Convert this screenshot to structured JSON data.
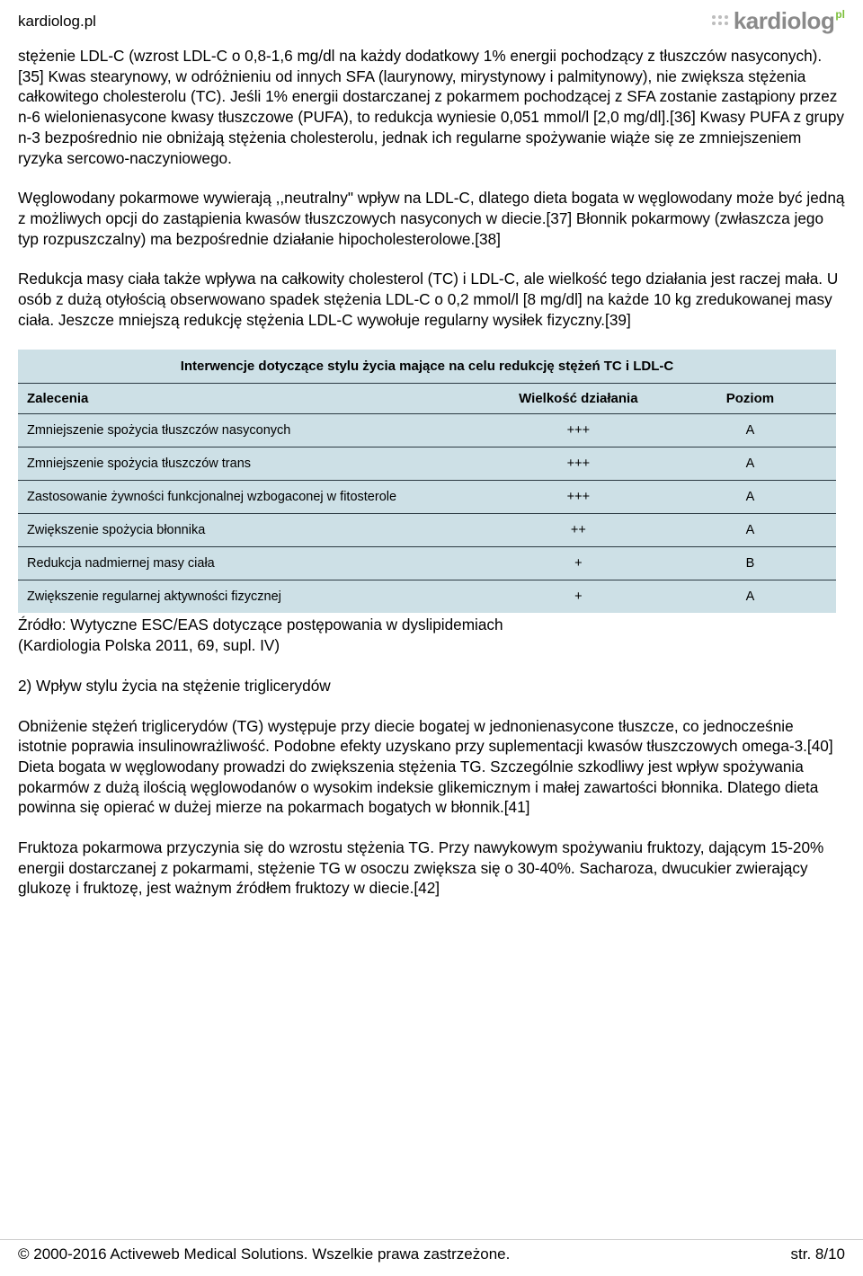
{
  "header": {
    "url": "kardiolog.pl",
    "logo_text": "kardiolog",
    "logo_suffix": "pl"
  },
  "paragraphs": {
    "p1": "stężenie LDL-C (wzrost LDL-C o 0,8-1,6 mg/dl na każdy dodatkowy 1% energii pochodzący z tłuszczów nasyconych).[35] Kwas stearynowy, w odróżnieniu od innych SFA (laurynowy, mirystynowy i palmitynowy), nie zwiększa stężenia całkowitego cholesterolu (TC). Jeśli 1% energii dostarczanej z pokarmem pochodzącej z SFA zostanie zastąpiony przez n-6 wielonienasycone kwasy tłuszczowe (PUFA), to redukcja wyniesie 0,051 mmol/l [2,0 mg/dl].[36] Kwasy PUFA z grupy n-3 bezpośrednio nie obniżają stężenia cholesterolu, jednak ich regularne spożywanie wiąże się ze zmniejszeniem ryzyka sercowo-naczyniowego.",
    "p2": "Węglowodany pokarmowe wywierają ,,neutralny\" wpływ na LDL-C, dlatego dieta bogata w węglowodany może być jedną z możliwych opcji do zastąpienia kwasów tłuszczowych nasyconych w diecie.[37] Błonnik pokarmowy (zwłaszcza jego typ rozpuszczalny) ma bezpośrednie działanie hipocholesterolowe.[38]",
    "p3": "Redukcja masy ciała także wpływa na całkowity cholesterol (TC) i LDL-C, ale wielkość tego działania jest raczej mała. U osób z dużą otyłością obserwowano spadek stężenia LDL-C o 0,2 mmol/l [8 mg/dl] na każde 10 kg zredukowanej masy ciała. Jeszcze mniejszą redukcję stężenia LDL-C wywołuje regularny wysiłek fizyczny.[39]",
    "source1": "Źródło: Wytyczne ESC/EAS dotyczące postępowania w dyslipidemiach",
    "source2": "(Kardiologia Polska 2011, 69, supl. IV)",
    "p4": "2) Wpływ stylu życia na stężenie triglicerydów",
    "p5": "Obniżenie stężeń triglicerydów (TG) występuje przy diecie bogatej w jednonienasycone tłuszcze, co jednocześnie istotnie poprawia insulinowrażliwość. Podobne efekty uzyskano przy suplementacji kwasów tłuszczowych omega-3.[40] Dieta bogata w węglowodany prowadzi do zwiększenia stężenia TG. Szczególnie szkodliwy jest wpływ spożywania pokarmów z dużą ilością węglowodanów o wysokim indeksie glikemicznym i małej zawartości błonnika. Dlatego dieta powinna się opierać w dużej mierze na pokarmach bogatych w błonnik.[41]",
    "p6": "Fruktoza pokarmowa przyczynia się do wzrostu stężenia TG. Przy nawykowym spożywaniu fruktozy, dającym 15-20% energii dostarczanej z pokarmami, stężenie TG w osoczu zwiększa się o 30-40%. Sacharoza, dwucukier zwierający glukozę i fruktozę, jest ważnym źródłem fruktozy w diecie.[42]"
  },
  "table": {
    "title": "Interwencje dotyczące stylu życia mające na celu redukcję stężeń TC i LDL-C",
    "columns": [
      "Zalecenia",
      "Wielkość działania",
      "Poziom"
    ],
    "rows": [
      [
        "Zmniejszenie spożycia tłuszczów nasyconych",
        "+++",
        "A"
      ],
      [
        "Zmniejszenie spożycia tłuszczów trans",
        "+++",
        "A"
      ],
      [
        "Zastosowanie żywności funkcjonalnej wzbogaconej w fitosterole",
        "+++",
        "A"
      ],
      [
        "Zwiększenie spożycia błonnika",
        "++",
        "A"
      ],
      [
        "Redukcja nadmiernej masy ciała",
        "+",
        "B"
      ],
      [
        "Zwiększenie regularnej aktywności fizycznej",
        "+",
        "A"
      ]
    ],
    "style": {
      "bg_color": "#cde0e6",
      "border_color": "#2b3a42",
      "title_fontsize": 15,
      "cell_fontsize": 14.5,
      "col_widths_pct": [
        58,
        21,
        21
      ]
    }
  },
  "footer": {
    "copyright": "© 2000-2016 Activeweb Medical Solutions. Wszelkie prawa zastrzeżone.",
    "page": "str. 8/10"
  }
}
